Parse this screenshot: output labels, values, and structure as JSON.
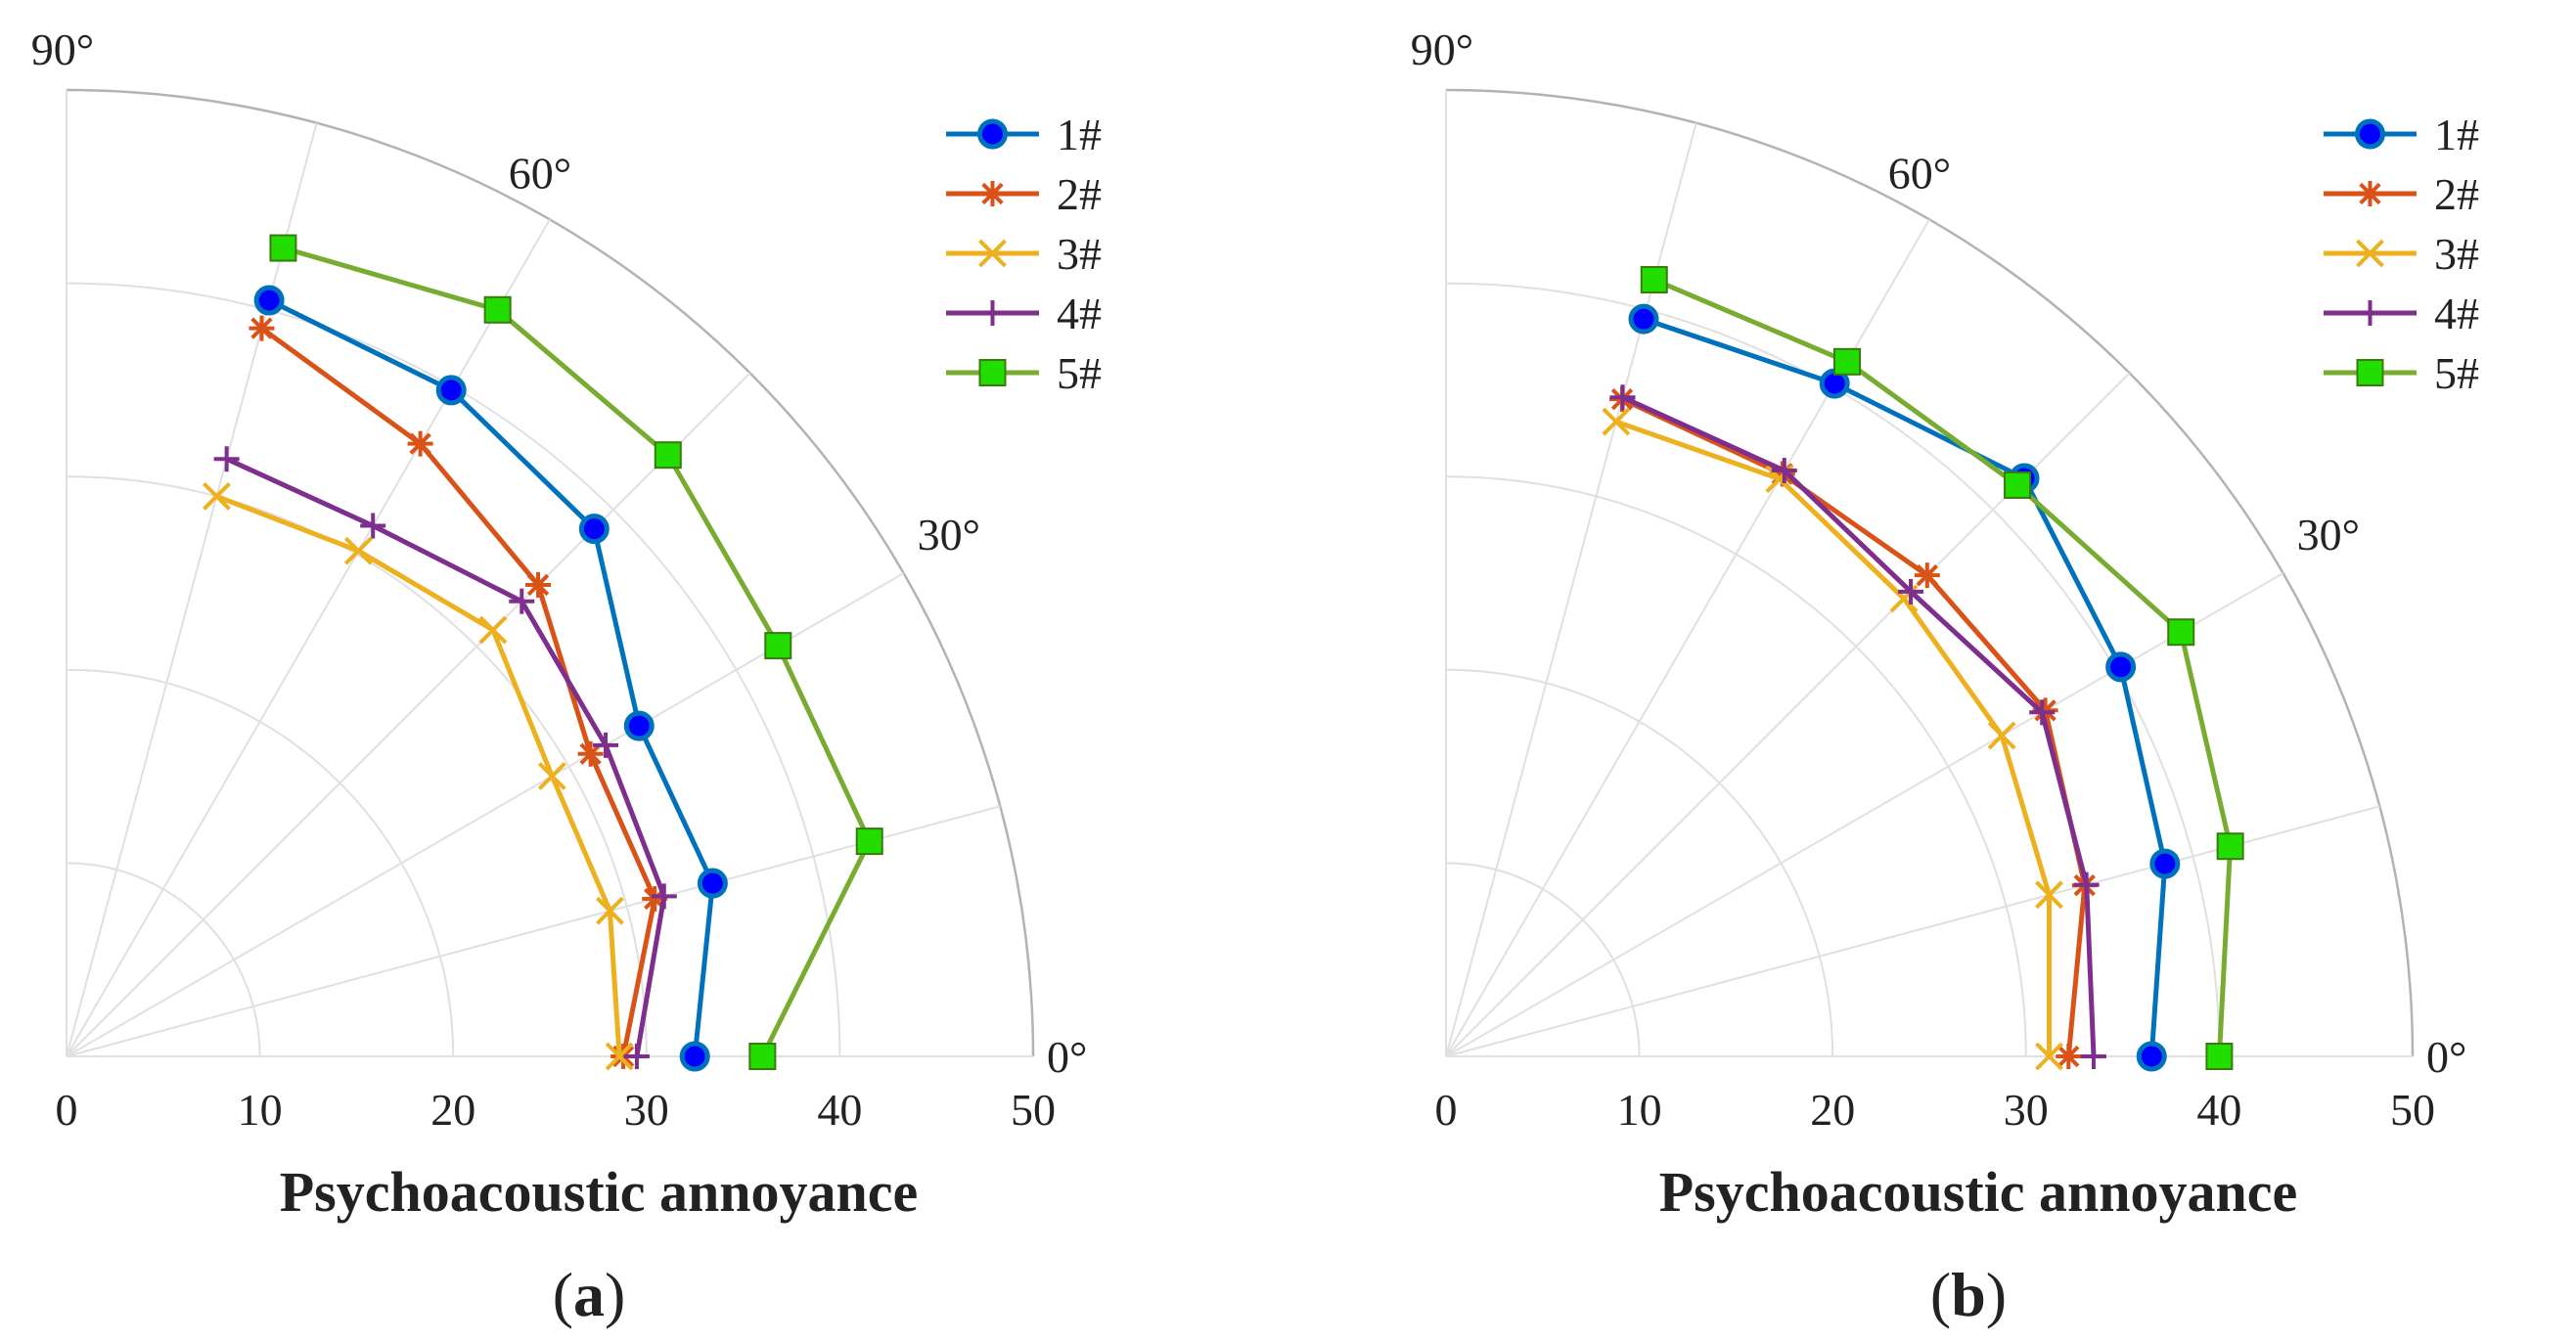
{
  "chart_data": [
    {
      "type": "polar-line",
      "panel_label": "a",
      "xlabel": "Psychoacoustic annoyance",
      "radial_ticks": [
        "0",
        "10",
        "20",
        "30",
        "40",
        "50"
      ],
      "radial_range": [
        0,
        50
      ],
      "angle_range_deg": [
        0,
        90
      ],
      "angle_ticks": [
        "0°",
        "30°",
        "60°",
        "90°"
      ],
      "grid": true,
      "legend_position": "top-right",
      "angles_deg": [
        0,
        15,
        30,
        45,
        60,
        75
      ],
      "series": [
        {
          "name": "1#",
          "color": "#0072BD",
          "marker": "circle",
          "values": [
            32.5,
            34.6,
            34.2,
            38.6,
            39.8,
            40.5
          ]
        },
        {
          "name": "2#",
          "color": "#D95319",
          "marker": "asterisk",
          "values": [
            28.8,
            31.5,
            31.3,
            34.5,
            36.6,
            39.0
          ]
        },
        {
          "name": "3#",
          "color": "#EDB120",
          "marker": "x",
          "values": [
            28.6,
            29.1,
            29.0,
            31.2,
            30.2,
            30.0
          ]
        },
        {
          "name": "4#",
          "color": "#7E2F8E",
          "marker": "plus",
          "values": [
            29.5,
            32.0,
            32.2,
            33.3,
            31.7,
            32.0
          ]
        },
        {
          "name": "5#",
          "color": "#77AC30",
          "marker": "square",
          "values": [
            36.0,
            43.0,
            42.5,
            44.0,
            44.6,
            43.3
          ]
        }
      ]
    },
    {
      "type": "polar-line",
      "panel_label": "b",
      "xlabel": "Psychoacoustic annoyance",
      "radial_ticks": [
        "0",
        "10",
        "20",
        "30",
        "40",
        "50"
      ],
      "radial_range": [
        0,
        50
      ],
      "angle_range_deg": [
        0,
        90
      ],
      "angle_ticks": [
        "0°",
        "30°",
        "60°",
        "90°"
      ],
      "grid": true,
      "legend_position": "top-right",
      "angles_deg": [
        0,
        15,
        30,
        45,
        60,
        75
      ],
      "series": [
        {
          "name": "1#",
          "color": "#0072BD",
          "marker": "circle",
          "values": [
            36.5,
            38.5,
            40.3,
            42.3,
            40.2,
            39.5
          ]
        },
        {
          "name": "2#",
          "color": "#D95319",
          "marker": "asterisk",
          "values": [
            32.2,
            34.2,
            35.8,
            35.2,
            34.8,
            35.2
          ]
        },
        {
          "name": "3#",
          "color": "#EDB120",
          "marker": "x",
          "values": [
            31.2,
            32.3,
            33.2,
            33.5,
            34.5,
            34.0
          ]
        },
        {
          "name": "4#",
          "color": "#7E2F8E",
          "marker": "plus",
          "values": [
            33.5,
            34.3,
            35.6,
            34.0,
            35.0,
            35.3
          ]
        },
        {
          "name": "5#",
          "color": "#77AC30",
          "marker": "square",
          "values": [
            40.0,
            42.0,
            43.9,
            41.8,
            41.5,
            41.6
          ]
        }
      ]
    }
  ]
}
